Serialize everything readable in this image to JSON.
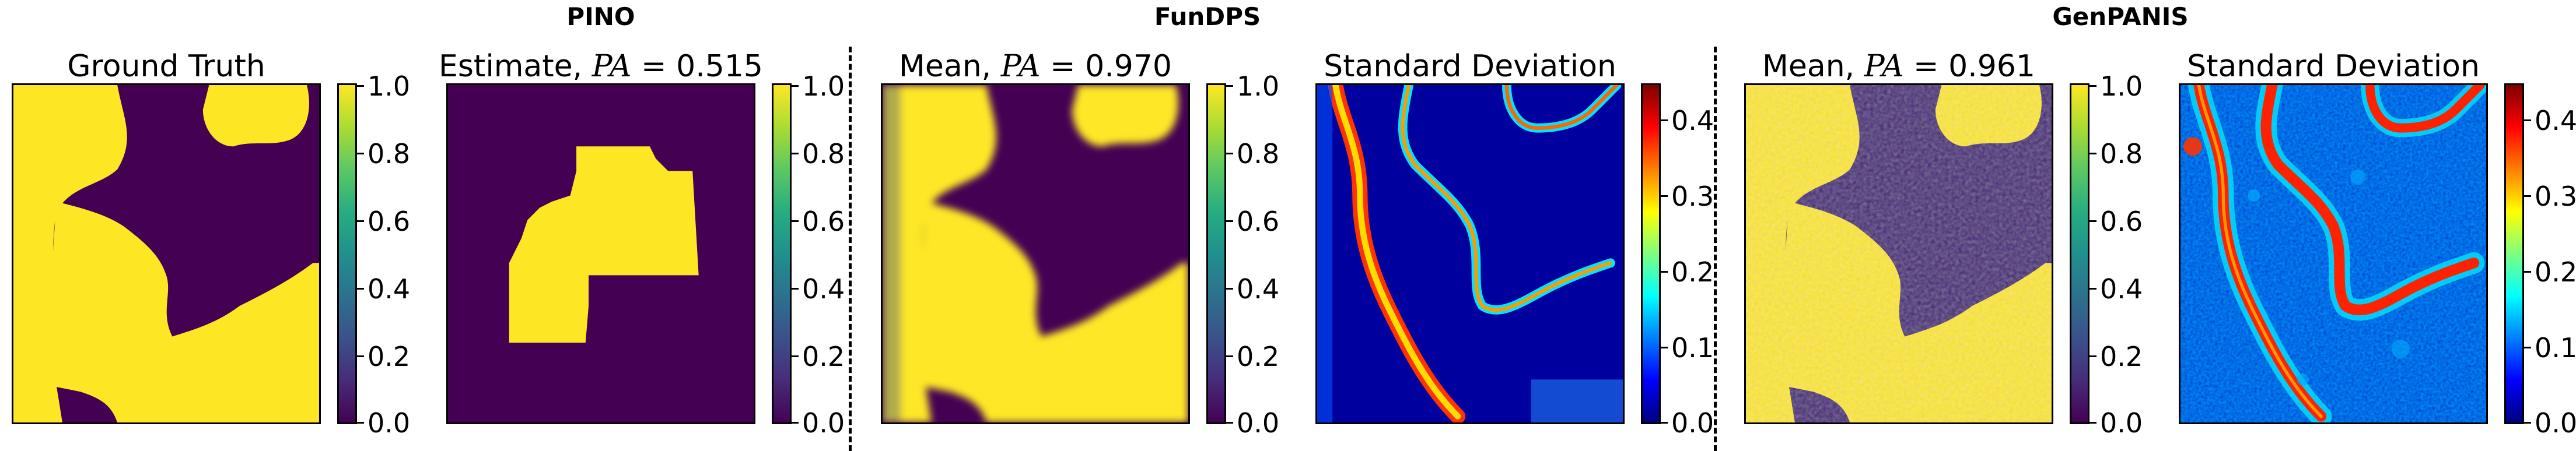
{
  "groups": {
    "pino": "PINO",
    "fundps": "FunDPS",
    "genpanis": "GenPANIS"
  },
  "panels": {
    "ground_truth": {
      "title": "Ground Truth"
    },
    "pino_estimate": {
      "title_prefix": "Estimate, ",
      "var": "PA",
      "eq": " = ",
      "value": "0.515"
    },
    "fundps_mean": {
      "title_prefix": "Mean, ",
      "var": "PA",
      "eq": " = ",
      "value": "0.970"
    },
    "fundps_std": {
      "title": "Standard Deviation"
    },
    "genpanis_mean": {
      "title_prefix": "Mean, ",
      "var": "PA",
      "eq": " = ",
      "value": "0.961"
    },
    "genpanis_std": {
      "title": "Standard Deviation"
    }
  },
  "colorbars": {
    "viridis_ticks": [
      "1.0",
      "0.8",
      "0.6",
      "0.4",
      "0.2",
      "0.0"
    ],
    "jet_ticks": [
      "0.4",
      "0.3",
      "0.2",
      "0.1",
      "0.0"
    ]
  },
  "colors": {
    "viridis_low": "#440154",
    "viridis_high": "#fde725",
    "jet_low": "#0000ff",
    "jet_high": "#ff0000"
  }
}
